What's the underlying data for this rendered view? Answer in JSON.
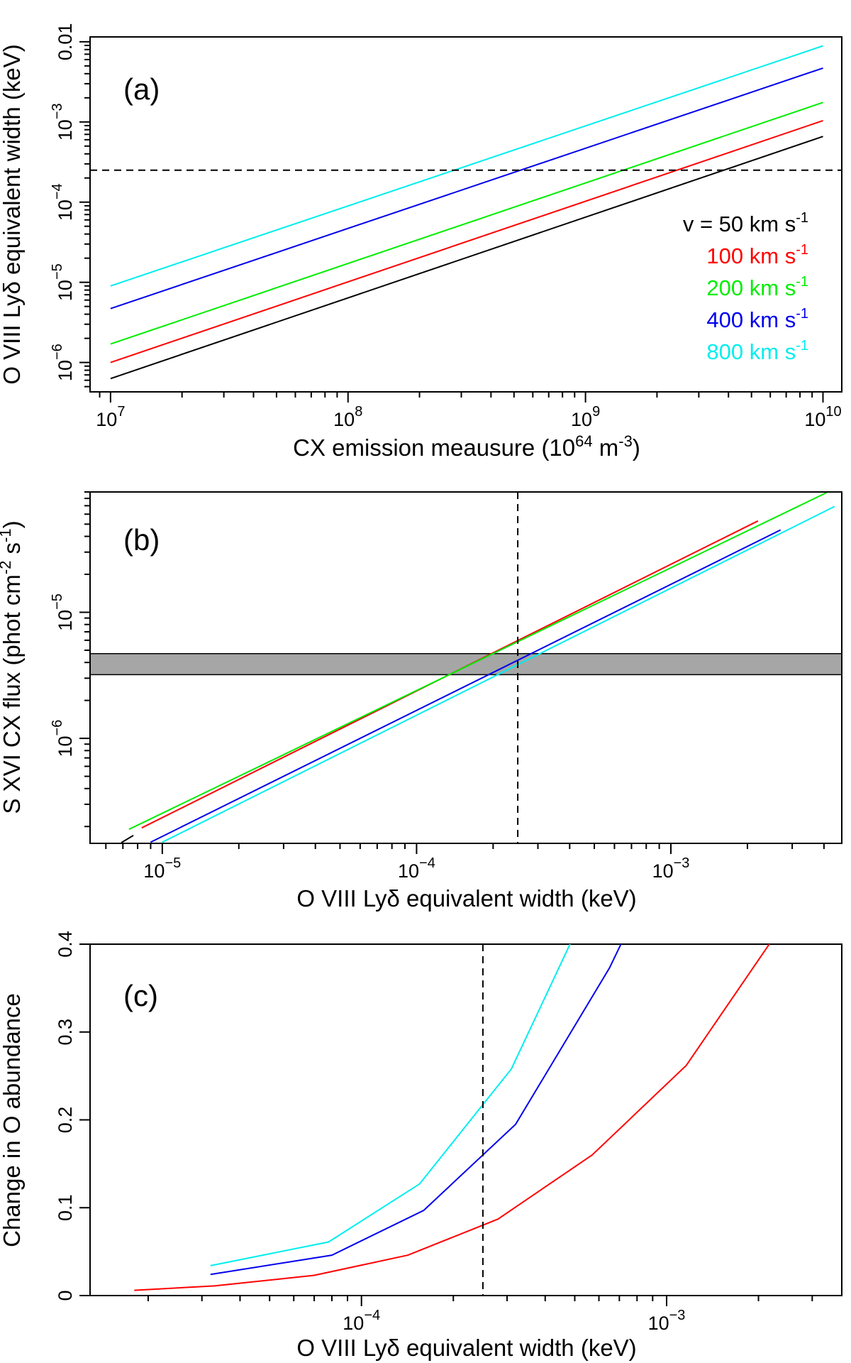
{
  "chart_data": [
    {
      "panel": "(a)",
      "type": "line",
      "xscale": "log",
      "yscale": "log",
      "xlabel": "CX emission meausure (10^64 m^-3)",
      "ylabel": "O VIII Lyδ equivalent width (keV)",
      "xlim": [
        8200000.0,
        12000000000.0
      ],
      "ylim": [
        4.3e-07,
        0.0115
      ],
      "xticks": [
        {
          "value": 10000000.0,
          "base": "10",
          "exp": "7"
        },
        {
          "value": 100000000.0,
          "base": "10",
          "exp": "8"
        },
        {
          "value": 1000000000.0,
          "base": "10",
          "exp": "9"
        },
        {
          "value": 10000000000.0,
          "base": "10",
          "exp": "10"
        }
      ],
      "yticks": [
        {
          "value": 1e-06,
          "base": "10",
          "exp": "−6"
        },
        {
          "value": 1e-05,
          "base": "10",
          "exp": "−5"
        },
        {
          "value": 0.0001,
          "base": "10",
          "exp": "−4"
        },
        {
          "value": 0.001,
          "base": "10",
          "exp": "−3"
        },
        {
          "value": 0.01,
          "base": "0.01",
          "exp": ""
        }
      ],
      "xlabel_parts": {
        "main": "CX emission meausure (10",
        "sup1": "64",
        "mid": " m",
        "sup2": "-3",
        "end": ")"
      },
      "hline": 0.00025,
      "series": [
        {
          "name": "v = 50 km s-1",
          "color": "#000000",
          "x": [
            10000000.0,
            10000000000.0
          ],
          "y": [
            6.3e-07,
            0.00066
          ]
        },
        {
          "name": "100 km s-1",
          "color": "#ff0000",
          "x": [
            10000000.0,
            10000000000.0
          ],
          "y": [
            1e-06,
            0.00104
          ]
        },
        {
          "name": "200 km s-1",
          "color": "#00ee00",
          "x": [
            10000000.0,
            10000000000.0
          ],
          "y": [
            1.7e-06,
            0.00175
          ]
        },
        {
          "name": "400 km s-1",
          "color": "#0000ee",
          "x": [
            10000000.0,
            10000000000.0
          ],
          "y": [
            4.7e-06,
            0.0047
          ]
        },
        {
          "name": "800 km s-1",
          "color": "#00eeee",
          "x": [
            10000000.0,
            10000000000.0
          ],
          "y": [
            9e-06,
            0.0089
          ]
        }
      ],
      "legend": [
        {
          "main": "v = 50 km s",
          "sup": "-1",
          "color": "#000000"
        },
        {
          "main": "100 km s",
          "sup": "-1",
          "color": "#ff0000"
        },
        {
          "main": "200 km s",
          "sup": "-1",
          "color": "#00ee00"
        },
        {
          "main": "400 km s",
          "sup": "-1",
          "color": "#0000ee"
        },
        {
          "main": "800 km s",
          "sup": "-1",
          "color": "#00eeee"
        }
      ]
    },
    {
      "panel": "(b)",
      "type": "line",
      "xscale": "log",
      "yscale": "log",
      "xlabel": "O VIII Lyδ equivalent width (keV)",
      "ylabel": "S XVI CX flux (phot cm^-2 s^-1)",
      "xlim": [
        5.2e-06,
        0.0047
      ],
      "ylim": [
        1.47e-07,
        9e-05
      ],
      "xticks": [
        {
          "value": 1e-05,
          "base": "10",
          "exp": "−5"
        },
        {
          "value": 0.0001,
          "base": "10",
          "exp": "−4"
        },
        {
          "value": 0.001,
          "base": "10",
          "exp": "−3"
        }
      ],
      "yticks": [
        {
          "value": 1e-06,
          "base": "10",
          "exp": "−6"
        },
        {
          "value": 1e-05,
          "base": "10",
          "exp": "−5"
        }
      ],
      "ylabel_parts": {
        "main": "S XVI CX flux (phot cm",
        "sup1": "-2",
        "mid": " s",
        "sup2": "-1",
        "end": ")"
      },
      "band": [
        3.2e-06,
        4.7e-06
      ],
      "vline": 0.00025,
      "series": [
        {
          "name": "50 km s-1",
          "color": "#000000",
          "x": [
            6.9e-06,
            7.7e-06
          ],
          "y": [
            1.49e-07,
            1.7e-07
          ]
        },
        {
          "name": "100 km s-1",
          "color": "#ff0000",
          "x": [
            8.3e-06,
            0.0022
          ],
          "y": [
            1.95e-07,
            5.3e-05
          ]
        },
        {
          "name": "200 km s-1",
          "color": "#00ee00",
          "x": [
            7.4e-06,
            0.0041
          ],
          "y": [
            1.9e-07,
            8.9e-05
          ]
        },
        {
          "name": "400 km s-1",
          "color": "#0000ee",
          "x": [
            9e-06,
            0.0027
          ],
          "y": [
            1.5e-07,
            4.5e-05
          ]
        },
        {
          "name": "800 km s-1",
          "color": "#00eeee",
          "x": [
            1e-05,
            0.0044
          ],
          "y": [
            1.5e-07,
            6.9e-05
          ]
        }
      ]
    },
    {
      "panel": "(c)",
      "type": "line",
      "xscale": "log",
      "yscale": "linear",
      "xlabel": "O VIII Lyδ equivalent width (keV)",
      "ylabel": "Change in O abundance",
      "xlim": [
        1.29e-05,
        0.00375
      ],
      "ylim": [
        0,
        0.4
      ],
      "xticks": [
        {
          "value": 0.0001,
          "base": "10",
          "exp": "−4"
        },
        {
          "value": 0.001,
          "base": "10",
          "exp": "−3"
        }
      ],
      "yticks": [
        {
          "value": 0,
          "label": "0"
        },
        {
          "value": 0.1,
          "label": "0.1"
        },
        {
          "value": 0.2,
          "label": "0.2"
        },
        {
          "value": 0.3,
          "label": "0.3"
        },
        {
          "value": 0.4,
          "label": "0.4"
        }
      ],
      "vline": 0.00025,
      "series": [
        {
          "name": "100 km s-1",
          "color": "#ff0000",
          "x": [
            1.8e-05,
            3.3e-05,
            7e-05,
            0.000142,
            0.00028,
            0.00057,
            0.00116,
            0.0022
          ],
          "y": [
            0.006,
            0.011,
            0.023,
            0.046,
            0.087,
            0.16,
            0.262,
            0.403
          ]
        },
        {
          "name": "400 km s-1",
          "color": "#0000ee",
          "x": [
            3.2e-05,
            8e-05,
            0.00016,
            0.00032,
            0.00065,
            0.00072
          ],
          "y": [
            0.024,
            0.046,
            0.097,
            0.195,
            0.373,
            0.405
          ]
        },
        {
          "name": "800 km s-1",
          "color": "#00eeee",
          "x": [
            3.2e-05,
            7.8e-05,
            0.000155,
            0.00031,
            0.00049
          ],
          "y": [
            0.034,
            0.061,
            0.127,
            0.258,
            0.405
          ]
        }
      ]
    }
  ]
}
